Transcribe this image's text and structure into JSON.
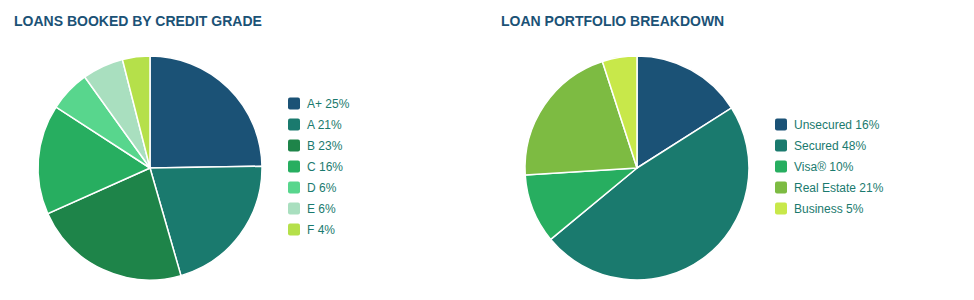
{
  "chart_data": [
    {
      "type": "pie",
      "title": "LOANS BOOKED BY CREDIT GRADE",
      "categories": [
        "A+ 25%",
        "A 21%",
        "B 23%",
        "C 16%",
        "D 6%",
        "E 6%",
        "F 4%"
      ],
      "values": [
        25,
        21,
        23,
        16,
        6,
        6,
        4
      ],
      "colors": [
        "#1b5276",
        "#1a7a6e",
        "#1e8449",
        "#27ae60",
        "#58d68d",
        "#a9dfbf",
        "#b5e04a"
      ],
      "legend": "right"
    },
    {
      "type": "pie",
      "title": "LOAN PORTFOLIO BREAKDOWN",
      "categories": [
        "Unsecured 16%",
        "Secured 48%",
        "Visa® 10%",
        "Real Estate 21%",
        "Business 5%"
      ],
      "values": [
        16,
        48,
        10,
        21,
        5
      ],
      "colors": [
        "#1b5276",
        "#1a7a6e",
        "#27ae60",
        "#7dbb42",
        "#c8e84a"
      ],
      "legend": "right"
    }
  ]
}
